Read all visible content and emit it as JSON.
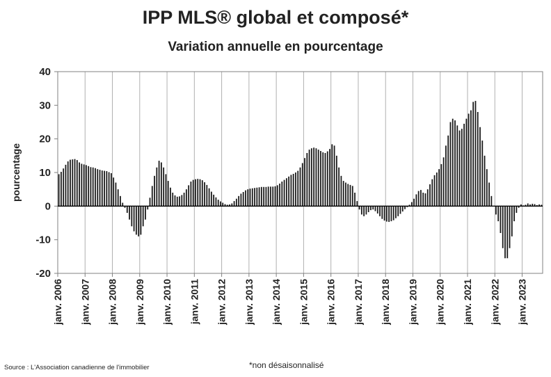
{
  "title": "IPP MLS® global et composé*",
  "subtitle": "Variation annuelle en pourcentage",
  "source": "Source : L'Association canadienne de l'immobilier",
  "note": "*non désaisonnalisé",
  "colors": {
    "bar": "#1a1a1a",
    "axis": "#808080",
    "grid": "#b0b0b0"
  },
  "chart_data": {
    "type": "bar",
    "ylabel": "pourcentage",
    "ylim": [
      -20,
      40
    ],
    "yticks": [
      40,
      30,
      20,
      10,
      0,
      -10,
      -20
    ],
    "grid": "vertical at January ticks",
    "x_tick_labels": [
      "janv. 2006",
      "janv. 2007",
      "janv. 2008",
      "janv. 2009",
      "janv. 2010",
      "janv. 2011",
      "janv. 2012",
      "janv. 2013",
      "janv. 2014",
      "janv. 2015",
      "janv. 2016",
      "janv. 2017",
      "janv. 2018",
      "janv. 2019",
      "janv. 2020",
      "janv. 2021",
      "janv. 2022",
      "janv. 2023"
    ],
    "start": "2006-01",
    "end": "2023-09",
    "values": [
      9.5,
      10.2,
      11.2,
      12.3,
      13.3,
      13.8,
      13.9,
      14.0,
      13.7,
      13.0,
      12.6,
      12.4,
      12.2,
      11.9,
      11.6,
      11.5,
      11.3,
      11.0,
      10.8,
      10.6,
      10.5,
      10.4,
      10.1,
      9.8,
      8.5,
      7.0,
      5.0,
      3.0,
      1.0,
      -0.5,
      -2.0,
      -4.0,
      -6.0,
      -7.5,
      -8.5,
      -9.0,
      -8.5,
      -6.0,
      -4.0,
      -1.0,
      2.5,
      6.0,
      9.0,
      11.5,
      13.5,
      13.0,
      11.5,
      9.5,
      7.5,
      5.5,
      4.0,
      3.2,
      2.8,
      2.9,
      3.3,
      4.0,
      5.0,
      6.2,
      7.3,
      7.8,
      8.0,
      8.1,
      8.0,
      7.7,
      7.1,
      6.3,
      5.3,
      4.3,
      3.4,
      2.6,
      1.9,
      1.4,
      1.0,
      0.6,
      0.4,
      0.5,
      0.8,
      1.5,
      2.2,
      3.0,
      3.7,
      4.2,
      4.7,
      5.0,
      5.2,
      5.3,
      5.4,
      5.5,
      5.6,
      5.7,
      5.7,
      5.7,
      5.8,
      5.8,
      5.8,
      5.9,
      6.2,
      6.7,
      7.3,
      7.8,
      8.3,
      8.8,
      9.3,
      9.6,
      10.0,
      10.5,
      11.5,
      12.8,
      14.3,
      15.8,
      16.8,
      17.2,
      17.4,
      17.2,
      16.8,
      16.4,
      16.0,
      15.8,
      16.3,
      17.0,
      18.4,
      18.0,
      15.0,
      11.5,
      9.0,
      7.5,
      7.0,
      6.6,
      6.3,
      6.0,
      4.0,
      1.5,
      -1.0,
      -2.5,
      -3.0,
      -2.5,
      -1.8,
      -1.2,
      -1.0,
      -1.5,
      -2.2,
      -3.0,
      -3.8,
      -4.3,
      -4.6,
      -4.7,
      -4.5,
      -4.2,
      -3.6,
      -3.0,
      -2.3,
      -1.6,
      -0.9,
      -0.3,
      0.4,
      1.2,
      2.2,
      3.5,
      4.5,
      4.8,
      4.0,
      3.8,
      5.0,
      6.5,
      8.0,
      9.2,
      10.0,
      11.0,
      12.5,
      14.5,
      18.0,
      21.0,
      25.0,
      26.0,
      25.5,
      24.0,
      22.5,
      23.0,
      24.5,
      26.0,
      27.5,
      28.5,
      31.0,
      31.3,
      28.0,
      23.5,
      19.5,
      15.0,
      11.0,
      7.0,
      3.0,
      0.0,
      -2.5,
      -4.5,
      -8.0,
      -12.5,
      -15.5,
      -15.5,
      -12.5,
      -9.0,
      -4.5,
      -2.0,
      -0.5,
      0.5,
      0.2,
      0.4,
      0.8,
      0.5,
      0.7,
      0.6,
      0.3,
      0.5,
      0.4
    ]
  }
}
